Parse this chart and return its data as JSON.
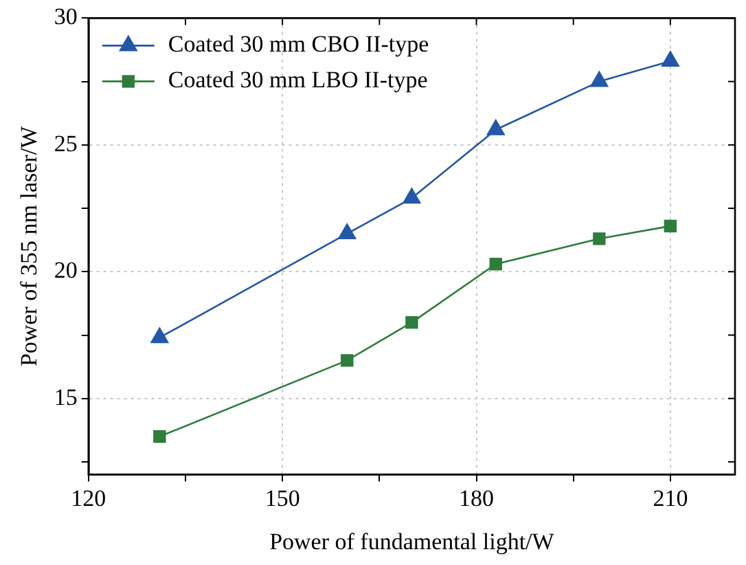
{
  "chart_data": {
    "type": "line",
    "xlabel": "Power of fundamental light/W",
    "ylabel": "Power of 355 nm laser/W",
    "xlim": [
      120,
      220
    ],
    "xticks": [
      120,
      {
        "value": 135,
        "label": null
      },
      150,
      {
        "value": 165,
        "label": null
      },
      180,
      {
        "value": 195,
        "label": null
      },
      210
    ],
    "ylim": [
      12,
      30
    ],
    "yticks": [
      {
        "value": 12.5,
        "label": null
      },
      15,
      {
        "value": 17.5,
        "label": null
      },
      20,
      {
        "value": 22.5,
        "label": null
      },
      25,
      {
        "value": 27.5,
        "label": null
      },
      30
    ],
    "grid": true,
    "legend": "top left",
    "line_style": "solid",
    "series": [
      {
        "name": "Coated 30 mm CBO II-type",
        "color": "#2457a8",
        "marker": "triangle",
        "x": [
          131,
          160,
          170,
          183,
          199,
          210
        ],
        "values": [
          17.4,
          21.5,
          22.9,
          25.6,
          27.5,
          28.3
        ]
      },
      {
        "name": "Coated 30 mm LBO II-type",
        "color": "#2e7d3b",
        "marker": "square",
        "x": [
          131,
          160,
          170,
          183,
          199,
          210
        ],
        "values": [
          13.5,
          16.5,
          18.0,
          20.3,
          21.3,
          21.8
        ]
      }
    ]
  }
}
